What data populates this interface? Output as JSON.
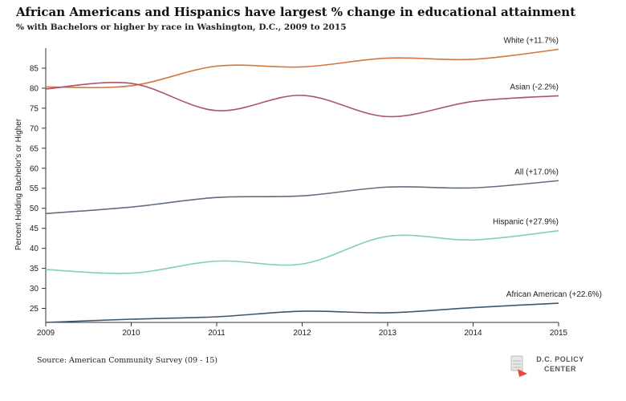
{
  "header": {
    "title": "African Americans and Hispanics have largest % change in educational attainment",
    "subtitle": "% with Bachelors or higher by race in Washington, D.C., 2009 to 2015"
  },
  "footer": {
    "source": "Source: American Community Survey (09 - 15)",
    "logo_line1": "D.C. POLICY",
    "logo_line2": "CENTER"
  },
  "chart_data": {
    "type": "line",
    "title": "African Americans and Hispanics have largest % change in educational attainment",
    "subtitle": "% with Bachelors or higher by race in Washington, D.C., 2009 to 2015",
    "xlabel": "",
    "ylabel": "Percent Holding Bachelor's or Higher",
    "x": [
      2009,
      2010,
      2011,
      2012,
      2013,
      2014,
      2015
    ],
    "xlim": [
      2009,
      2015
    ],
    "ylim": [
      21.5,
      90
    ],
    "yticks": [
      25,
      30,
      35,
      40,
      45,
      50,
      55,
      60,
      65,
      70,
      75,
      80,
      85
    ],
    "grid": false,
    "series": [
      {
        "name": "White (+11.7%)",
        "color": "#d4773f",
        "values": [
          80.3,
          80.6,
          85.5,
          85.3,
          87.5,
          87.2,
          89.7
        ]
      },
      {
        "name": "Asian (-2.2%)",
        "color": "#a8566f",
        "values": [
          79.8,
          81.2,
          74.4,
          78.2,
          72.9,
          76.7,
          78.1
        ]
      },
      {
        "name": "All (+17.0%)",
        "color": "#5f6e80",
        "values": [
          48.7,
          50.3,
          52.7,
          53.1,
          55.3,
          55.1,
          56.9
        ]
      },
      {
        "name": "Hispanic (+27.9%)",
        "color": "#82cdc2",
        "values": [
          34.7,
          33.8,
          36.8,
          36.1,
          43.0,
          42.1,
          44.4
        ]
      },
      {
        "name": "African American (+22.6%)",
        "color": "#3e5870",
        "values": [
          21.5,
          22.3,
          22.9,
          24.3,
          23.9,
          25.2,
          26.3
        ]
      }
    ]
  }
}
